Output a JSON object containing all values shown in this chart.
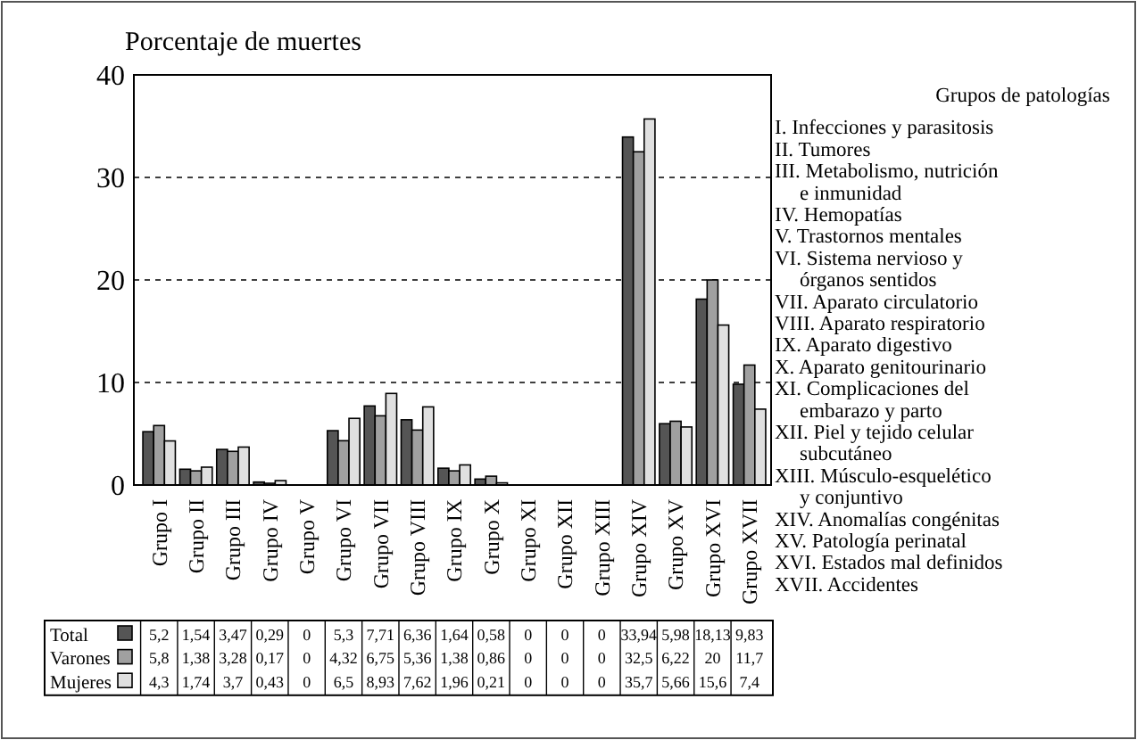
{
  "chart_data": {
    "type": "bar",
    "ylabel": "Porcentaje de muertes",
    "categories": [
      "Grupo I",
      "Grupo II",
      "Grupo III",
      "Grupo IV",
      "Grupo V",
      "Grupo VI",
      "Grupo VII",
      "Grupo VIII",
      "Grupo IX",
      "Grupo X",
      "Grupo XI",
      "Grupo XII",
      "Grupo XIII",
      "Grupo XIV",
      "Grupo XV",
      "Grupo XVI",
      "Grupo XVII"
    ],
    "series": [
      {
        "name": "Total",
        "color": "#555555",
        "values": [
          5.2,
          1.54,
          3.47,
          0.29,
          0,
          5.3,
          7.71,
          6.36,
          1.64,
          0.58,
          0,
          0,
          0,
          33.94,
          5.98,
          18.13,
          9.83
        ],
        "value_labels": [
          "5,2",
          "1,54",
          "3,47",
          "0,29",
          "0",
          "5,3",
          "7,71",
          "6,36",
          "1,64",
          "0,58",
          "0",
          "0",
          "0",
          "33,94",
          "5,98",
          "18,13",
          "9,83"
        ]
      },
      {
        "name": "Varones",
        "color": "#a0a0a0",
        "values": [
          5.8,
          1.38,
          3.28,
          0.17,
          0,
          4.32,
          6.75,
          5.36,
          1.38,
          0.86,
          0,
          0,
          0,
          32.5,
          6.22,
          20,
          11.7
        ],
        "value_labels": [
          "5,8",
          "1,38",
          "3,28",
          "0,17",
          "0",
          "4,32",
          "6,75",
          "5,36",
          "1,38",
          "0,86",
          "0",
          "0",
          "0",
          "32,5",
          "6,22",
          "20",
          "11,7"
        ]
      },
      {
        "name": "Mujeres",
        "color": "#e0e0e0",
        "values": [
          4.3,
          1.74,
          3.7,
          0.43,
          0,
          6.5,
          8.93,
          7.62,
          1.96,
          0.21,
          0,
          0,
          0,
          35.7,
          5.66,
          15.6,
          7.4
        ],
        "value_labels": [
          "4,3",
          "1,74",
          "3,7",
          "0,43",
          "0",
          "6,5",
          "8,93",
          "7,62",
          "1,96",
          "0,21",
          "0",
          "0",
          "0",
          "35,7",
          "5,66",
          "15,6",
          "7,4"
        ]
      }
    ],
    "ylim": [
      0,
      40
    ],
    "yticks": [
      0,
      10,
      20,
      30,
      40
    ],
    "grid": "y",
    "legend": "bottom",
    "annotations": [
      "Grupos de patologías",
      "I. Infecciones y parasitosis",
      "II. Tumores",
      "III. Metabolismo, nutrición\ne inmunidad",
      "IV. Hemopatías",
      "V. Trastornos mentales",
      "VI. Sistema nervioso y\nórganos sentidos",
      "VII. Aparato circulatorio",
      "VIII. Aparato respiratorio",
      "IX. Aparato digestivo",
      "X. Aparato genitourinario",
      "XI. Complicaciones del\nembarazo y parto",
      "XII. Piel y tejido celular\nsubcutáneo",
      "XIII. Músculo-esquelético\ny conjuntivo",
      "XIV. Anomalías congénitas",
      "XV. Patología perinatal",
      "XVI. Estados mal definidos",
      "XVII. Accidentes"
    ]
  }
}
